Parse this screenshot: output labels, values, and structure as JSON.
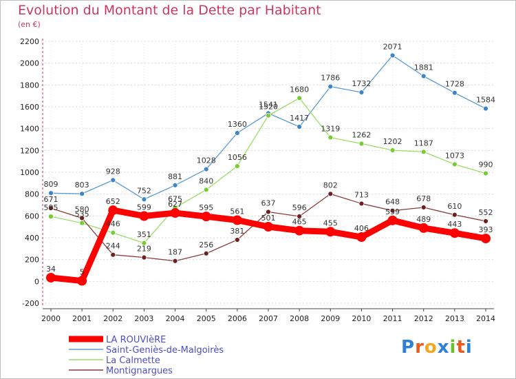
{
  "title": "Evolution du Montant de la Dette par Habitant",
  "unit_note": "(en €)",
  "logo": {
    "text": "Proxiti",
    "letter_colors": [
      "#2e7fd6",
      "#e85a1e",
      "#f2a81d",
      "#2e7fd6",
      "#6cbf2a",
      "#e85a1e",
      "#2e7fd6"
    ]
  },
  "chart_data": {
    "type": "line",
    "title": "Evolution du Montant de la Dette par Habitant",
    "subtitle": "(en €)",
    "xlabel": "",
    "ylabel": "",
    "x": [
      2000,
      2001,
      2002,
      2003,
      2004,
      2005,
      2006,
      2007,
      2008,
      2009,
      2010,
      2011,
      2012,
      2013,
      2014
    ],
    "ylim": [
      -200,
      2200
    ],
    "yticks": [
      -200,
      0,
      200,
      400,
      600,
      800,
      1000,
      1200,
      1400,
      1600,
      1800,
      2000,
      2200
    ],
    "grid": "horizontal dashed",
    "legend_position": "bottom-left",
    "series": [
      {
        "name": "Saint-Geniès-de-Malgoirès",
        "color": "#5b9bd5",
        "point_color": "#3d85c6",
        "values": [
          809,
          803,
          928,
          752,
          881,
          1028,
          1360,
          1541,
          1417,
          1786,
          1732,
          2071,
          1881,
          1728,
          1584
        ]
      },
      {
        "name": "La Calmette",
        "color": "#99dd66",
        "point_color": "#77cc33",
        "values": [
          595,
          535,
          446,
          351,
          675,
          840,
          1056,
          1520,
          1680,
          1319,
          1262,
          1202,
          1187,
          1073,
          990
        ]
      },
      {
        "name": "Montignargues",
        "color": "#8b3a3a",
        "point_color": "#6e1f1f",
        "values": [
          671,
          580,
          244,
          219,
          187,
          256,
          381,
          637,
          596,
          802,
          713,
          648,
          678,
          610,
          552
        ]
      },
      {
        "name": "LA ROUVIèRE",
        "color": "#ff0000",
        "point_color": "#ff0000",
        "values": [
          34,
          5,
          652,
          599,
          627,
          595,
          561,
          501,
          465,
          455,
          406,
          559,
          489,
          443,
          393
        ]
      }
    ],
    "legend_order": [
      "LA ROUVIèRE",
      "Saint-Geniès-de-Malgoirès",
      "La Calmette",
      "Montignargues"
    ]
  }
}
